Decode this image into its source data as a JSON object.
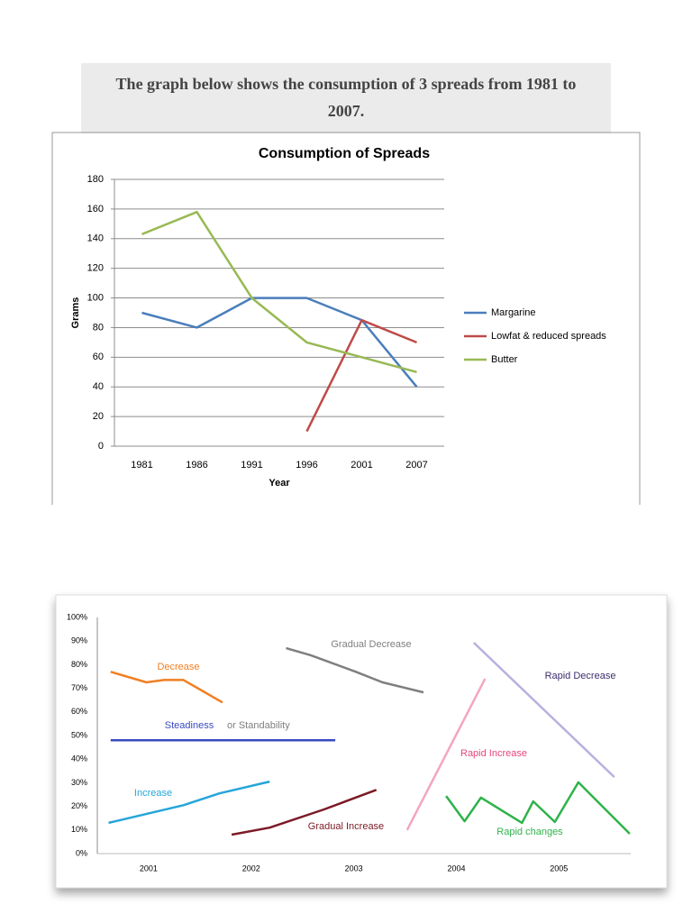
{
  "caption": "The graph below shows the consumption of 3 spreads from 1981 to 2007.",
  "chart_data": [
    {
      "type": "line",
      "title": "Consumption of Spreads",
      "x_label": "Year",
      "y_label": "Grams",
      "categories": [
        "1981",
        "1986",
        "1991",
        "1996",
        "2001",
        "2007"
      ],
      "series": [
        {
          "name": "Margarine",
          "color": "#4a7ebb",
          "values": [
            90,
            80,
            100,
            100,
            85,
            40
          ]
        },
        {
          "name": "Lowfat & reduced spreads",
          "color": "#be4b48",
          "values": [
            null,
            null,
            null,
            10,
            85,
            70
          ]
        },
        {
          "name": "Butter",
          "color": "#98b954",
          "values": [
            143,
            158,
            100,
            70,
            60,
            50
          ]
        }
      ],
      "ylim": [
        0,
        180
      ],
      "yticks": [
        0,
        20,
        40,
        60,
        80,
        100,
        120,
        140,
        160,
        180
      ],
      "grid": true,
      "legend": "right"
    },
    {
      "type": "line",
      "xlim": [
        2000.5,
        2005.7
      ],
      "xticks": [
        2001,
        2002,
        2003,
        2004,
        2005
      ],
      "ylim": [
        0,
        100
      ],
      "yticks": [
        {
          "value": 0,
          "label": "0%"
        },
        {
          "value": 10,
          "label": "10%"
        },
        {
          "value": 20,
          "label": "20%"
        },
        {
          "value": 30,
          "label": "30%"
        },
        {
          "value": 40,
          "label": "40%"
        },
        {
          "value": 50,
          "label": "50%"
        },
        {
          "value": 60,
          "label": "60%"
        },
        {
          "value": 70,
          "label": "70%"
        },
        {
          "value": 80,
          "label": "80%"
        },
        {
          "value": 90,
          "label": "90%"
        },
        {
          "value": 100,
          "label": "100%"
        }
      ],
      "grid": false,
      "annotation": "or Standability",
      "series": [
        {
          "name": "Decrease",
          "color": "#f07f22",
          "x": [
            2000.63,
            2000.98,
            2001.15,
            2001.34,
            2001.72
          ],
          "values": [
            77,
            72.5,
            73.5,
            73.5,
            64
          ]
        },
        {
          "name": "Steadiness",
          "color": "#3b49c0",
          "x": [
            2000.63,
            2002.82
          ],
          "values": [
            48,
            48
          ]
        },
        {
          "name": "Increase",
          "color": "#25a5da",
          "x": [
            2000.61,
            2001.34,
            2001.69,
            2002.18
          ],
          "values": [
            13,
            20.5,
            25.5,
            30.5
          ]
        },
        {
          "name": "Gradual Decrease",
          "color": "#7f7f7f",
          "x": [
            2002.34,
            2002.58,
            2003.02,
            2003.28,
            2003.68
          ],
          "values": [
            87,
            84,
            77,
            72.5,
            68.3
          ]
        },
        {
          "name": "Gradual Increase",
          "color": "#7b1a26",
          "x": [
            2001.81,
            2002.18,
            2002.71,
            2003.22
          ],
          "values": [
            8,
            11,
            18.7,
            27
          ]
        },
        {
          "name": "Rapid Increase",
          "color": "#f4a6bd",
          "label_color": "#e8457a",
          "x": [
            2003.52,
            2004.28
          ],
          "values": [
            10,
            74
          ]
        },
        {
          "name": "Rapid Decrease",
          "color": "#b7b0e0",
          "label_color": "#3d2e6e",
          "x": [
            2004.17,
            2005.54
          ],
          "values": [
            89.3,
            32.4
          ]
        },
        {
          "name": "Rapid changes",
          "color": "#2fb24a",
          "x": [
            2003.9,
            2004.08,
            2004.24,
            2004.64,
            2004.75,
            2004.96,
            2005.19,
            2005.69
          ],
          "values": [
            24.4,
            13.7,
            23.7,
            13,
            22.1,
            13.4,
            30.2,
            8.4
          ]
        }
      ]
    }
  ]
}
